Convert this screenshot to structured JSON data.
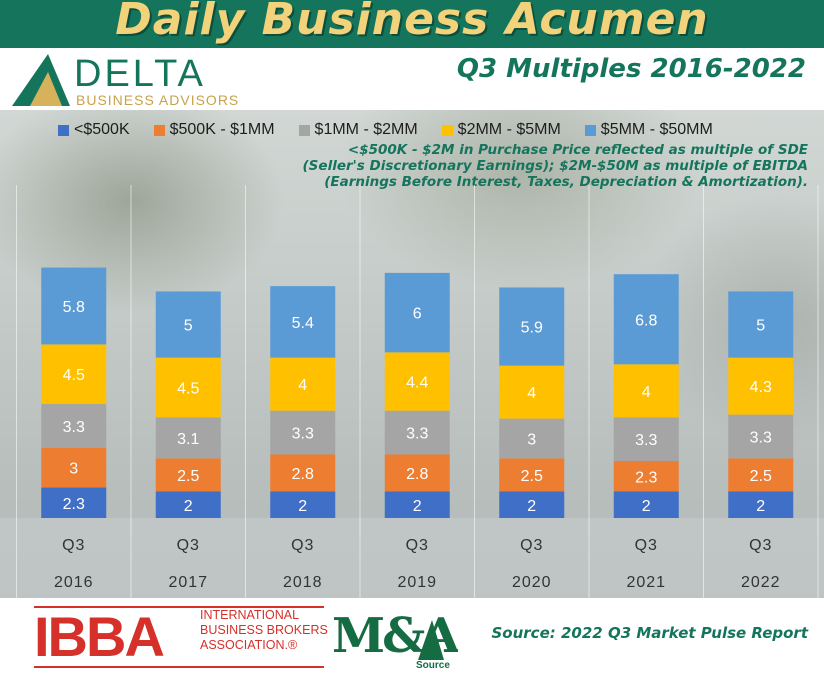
{
  "header": {
    "title": "Daily Business Acumen",
    "subtitle": "Q3 Multiples 2016-2022"
  },
  "logo": {
    "name": "DELTA",
    "tagline": "BUSINESS ADVISORS"
  },
  "note": {
    "line1": "<$500K - $2M in Purchase Price reflected as multiple of SDE",
    "line2": "(Seller's Discretionary Earnings); $2M-$50M as multiple of EBITDA",
    "line3": "(Earnings Before Interest, Taxes, Depreciation & Amortization)."
  },
  "footer": {
    "ibba_abbrev": "IBBA",
    "ibba_line1": "INTERNATIONAL",
    "ibba_line2": "BUSINESS BROKERS",
    "ibba_line3": "ASSOCIATION.®",
    "ma_mark": "M&A",
    "ma_sub": "Source",
    "source": "Source: 2022 Q3 Market Pulse Report"
  },
  "colors": {
    "brand_green": "#15755c",
    "title_gold": "#f2d27a",
    "ibba_red": "#d6302b"
  },
  "chart_data": {
    "type": "bar",
    "stacked": true,
    "categories": [
      "Q3 2016",
      "Q3 2017",
      "Q3 2018",
      "Q3 2019",
      "Q3 2020",
      "Q3 2021",
      "Q3 2022"
    ],
    "category_lines": [
      [
        "Q3",
        "2016"
      ],
      [
        "Q3",
        "2017"
      ],
      [
        "Q3",
        "2018"
      ],
      [
        "Q3",
        "2019"
      ],
      [
        "Q3",
        "2020"
      ],
      [
        "Q3",
        "2021"
      ],
      [
        "Q3",
        "2022"
      ]
    ],
    "series": [
      {
        "name": "<$500K",
        "color": "#3f6fc6",
        "values": [
          2.3,
          2,
          2,
          2,
          2,
          2,
          2
        ]
      },
      {
        "name": "$500K - $1MM",
        "color": "#ec7d31",
        "values": [
          3,
          2.5,
          2.8,
          2.8,
          2.5,
          2.3,
          2.5
        ]
      },
      {
        "name": "$1MM - $2MM",
        "color": "#a5a5a5",
        "values": [
          3.3,
          3.1,
          3.3,
          3.3,
          3,
          3.3,
          3.3
        ]
      },
      {
        "name": "$2MM - $5MM",
        "color": "#ffc000",
        "values": [
          4.5,
          4.5,
          4,
          4.4,
          4,
          4,
          4.3
        ]
      },
      {
        "name": "$5MM - $50MM",
        "color": "#5b9bd5",
        "values": [
          5.8,
          5,
          5.4,
          6,
          5.9,
          6.8,
          5
        ]
      }
    ],
    "legend_position": "top",
    "grid": false
  }
}
